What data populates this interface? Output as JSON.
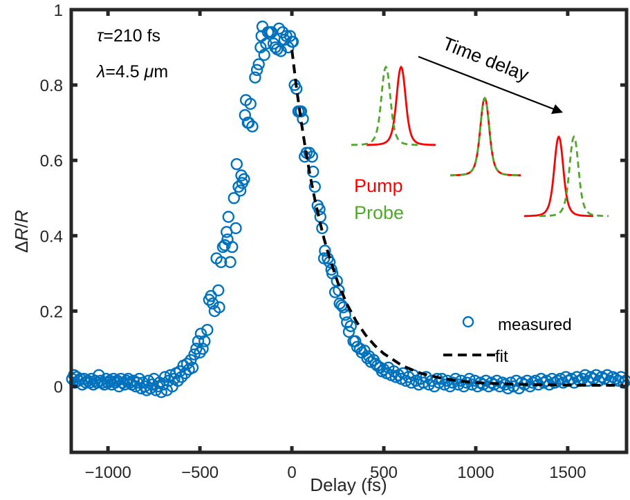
{
  "chart_data": {
    "type": "scatter",
    "title": "",
    "xlabel": "Delay (fs)",
    "ylabel": "ΔR/R",
    "xlim": [
      -1200,
      1820
    ],
    "ylim": [
      -0.175,
      1
    ],
    "xticks": [
      -1000,
      -500,
      0,
      500,
      1000,
      1500
    ],
    "xtick_labels": [
      "−1000",
      "−500",
      "0",
      "500",
      "1000",
      "1500"
    ],
    "yticks": [
      0,
      0.2,
      0.4,
      0.6,
      0.8,
      1
    ],
    "ytick_labels": [
      "0",
      "0.2",
      "0.4",
      "0.6",
      "0.8",
      "1"
    ],
    "grid": false,
    "legend": {
      "placement": "lower-right",
      "entries": [
        {
          "label": "measured",
          "marker": "open-circle",
          "color": "#0072BD"
        },
        {
          "label": "fit",
          "style": "dashed-line",
          "color": "#000000"
        }
      ]
    },
    "annotations": [
      {
        "text_prefix": "τ",
        "text": "=210 fs"
      },
      {
        "text_prefix": "λ",
        "text": "=4.5 ",
        "unit_italic": "μ",
        "unit": "m"
      }
    ],
    "series": [
      {
        "name": "measured",
        "type": "scatter",
        "marker": "open-circle",
        "color": "#0072BD",
        "points": [
          [
            -1195,
            0.02
          ],
          [
            -1185,
            0.03
          ],
          [
            -1180,
            0.01
          ],
          [
            -1170,
            0.025
          ],
          [
            -1160,
            0.015
          ],
          [
            -1150,
            0.02
          ],
          [
            -1140,
            0.005
          ],
          [
            -1130,
            0.02
          ],
          [
            -1120,
            0.01
          ],
          [
            -1110,
            0.015
          ],
          [
            -1100,
            0.01
          ],
          [
            -1090,
            0.02
          ],
          [
            -1080,
            0.005
          ],
          [
            -1070,
            0.015
          ],
          [
            -1060,
            0.01
          ],
          [
            -1050,
            0.03
          ],
          [
            -1040,
            0.015
          ],
          [
            -1030,
            0.01
          ],
          [
            -1020,
            0.005
          ],
          [
            -1010,
            0.02
          ],
          [
            -1000,
            0.01
          ],
          [
            -990,
            0.015
          ],
          [
            -980,
            0.005
          ],
          [
            -970,
            0.02
          ],
          [
            -960,
            0.01
          ],
          [
            -950,
            0.015
          ],
          [
            -940,
            0.0
          ],
          [
            -930,
            0.02
          ],
          [
            -920,
            0.01
          ],
          [
            -910,
            0.005
          ],
          [
            -900,
            0.015
          ],
          [
            -890,
            0.02
          ],
          [
            -880,
            0.01
          ],
          [
            -870,
            0.005
          ],
          [
            -860,
            0.015
          ],
          [
            -850,
            0.0
          ],
          [
            -840,
            0.01
          ],
          [
            -830,
            0.02
          ],
          [
            -820,
            -0.005
          ],
          [
            -810,
            0.01
          ],
          [
            -800,
            0.0
          ],
          [
            -790,
            -0.01
          ],
          [
            -780,
            0.015
          ],
          [
            -770,
            -0.005
          ],
          [
            -760,
            0.005
          ],
          [
            -750,
            0.02
          ],
          [
            -740,
            -0.01
          ],
          [
            -730,
            0.0
          ],
          [
            -720,
            0.01
          ],
          [
            -710,
            -0.015
          ],
          [
            -700,
            0.005
          ],
          [
            -690,
            0.025
          ],
          [
            -680,
            -0.01
          ],
          [
            -670,
            0.015
          ],
          [
            -660,
            0.03
          ],
          [
            -650,
            0.0
          ],
          [
            -640,
            0.02
          ],
          [
            -630,
            0.035
          ],
          [
            -620,
            0.015
          ],
          [
            -610,
            0.04
          ],
          [
            -600,
            0.025
          ],
          [
            -590,
            0.055
          ],
          [
            -580,
            0.035
          ],
          [
            -570,
            0.06
          ],
          [
            -560,
            0.045
          ],
          [
            -550,
            0.07
          ],
          [
            -540,
            0.05
          ],
          [
            -530,
            0.085
          ],
          [
            -520,
            0.1
          ],
          [
            -510,
            0.12
          ],
          [
            -500,
            0.09
          ],
          [
            -495,
            0.14
          ],
          [
            -485,
            0.1
          ],
          [
            -475,
            0.12
          ],
          [
            -460,
            0.15
          ],
          [
            -450,
            0.23
          ],
          [
            -440,
            0.24
          ],
          [
            -430,
            0.22
          ],
          [
            -420,
            0.2
          ],
          [
            -410,
            0.34
          ],
          [
            -400,
            0.255
          ],
          [
            -395,
            0.21
          ],
          [
            -385,
            0.33
          ],
          [
            -375,
            0.37
          ],
          [
            -365,
            0.375
          ],
          [
            -355,
            0.41
          ],
          [
            -350,
            0.39
          ],
          [
            -345,
            0.45
          ],
          [
            -335,
            0.33
          ],
          [
            -325,
            0.37
          ],
          [
            -315,
            0.5
          ],
          [
            -305,
            0.42
          ],
          [
            -300,
            0.59
          ],
          [
            -290,
            0.53
          ],
          [
            -280,
            0.52
          ],
          [
            -275,
            0.56
          ],
          [
            -270,
            0.54
          ],
          [
            -260,
            0.55
          ],
          [
            -255,
            0.72
          ],
          [
            -250,
            0.76
          ],
          [
            -240,
            0.7
          ],
          [
            -235,
            0.7
          ],
          [
            -225,
            0.75
          ],
          [
            -215,
            0.69
          ],
          [
            -200,
            0.82
          ],
          [
            -190,
            0.84
          ],
          [
            -180,
            0.855
          ],
          [
            -170,
            0.9
          ],
          [
            -165,
            0.93
          ],
          [
            -160,
            0.955
          ],
          [
            -150,
            0.88
          ],
          [
            -140,
            0.91
          ],
          [
            -130,
            0.94
          ],
          [
            -120,
            0.94
          ],
          [
            -110,
            0.94
          ],
          [
            -100,
            0.91
          ],
          [
            -90,
            0.9
          ],
          [
            -80,
            0.895
          ],
          [
            -70,
            0.95
          ],
          [
            -60,
            0.89
          ],
          [
            -50,
            0.94
          ],
          [
            -40,
            0.92
          ],
          [
            -30,
            0.93
          ],
          [
            -20,
            0.9
          ],
          [
            -10,
            0.93
          ],
          [
            0,
            0.915
          ],
          [
            5,
            0.915
          ],
          [
            15,
            0.8
          ],
          [
            25,
            0.79
          ],
          [
            35,
            0.73
          ],
          [
            45,
            0.73
          ],
          [
            50,
            0.73
          ],
          [
            60,
            0.71
          ],
          [
            70,
            0.61
          ],
          [
            80,
            0.62
          ],
          [
            95,
            0.62
          ],
          [
            110,
            0.61
          ],
          [
            115,
            0.57
          ],
          [
            125,
            0.53
          ],
          [
            140,
            0.48
          ],
          [
            150,
            0.47
          ],
          [
            155,
            0.45
          ],
          [
            165,
            0.42
          ],
          [
            175,
            0.34
          ],
          [
            180,
            0.36
          ],
          [
            195,
            0.34
          ],
          [
            205,
            0.33
          ],
          [
            215,
            0.31
          ],
          [
            220,
            0.3
          ],
          [
            235,
            0.25
          ],
          [
            245,
            0.28
          ],
          [
            255,
            0.255
          ],
          [
            260,
            0.22
          ],
          [
            270,
            0.215
          ],
          [
            280,
            0.21
          ],
          [
            290,
            0.19
          ],
          [
            300,
            0.17
          ],
          [
            310,
            0.145
          ],
          [
            320,
            0.16
          ],
          [
            335,
            0.12
          ],
          [
            345,
            0.12
          ],
          [
            355,
            0.105
          ],
          [
            370,
            0.1
          ],
          [
            380,
            0.09
          ],
          [
            395,
            0.095
          ],
          [
            410,
            0.075
          ],
          [
            420,
            0.08
          ],
          [
            430,
            0.065
          ],
          [
            445,
            0.07
          ],
          [
            455,
            0.06
          ],
          [
            465,
            0.055
          ],
          [
            480,
            0.05
          ],
          [
            490,
            0.04
          ],
          [
            500,
            0.045
          ],
          [
            515,
            0.035
          ],
          [
            525,
            0.05
          ],
          [
            540,
            0.03
          ],
          [
            555,
            0.04
          ],
          [
            565,
            0.025
          ],
          [
            580,
            0.03
          ],
          [
            595,
            0.02
          ],
          [
            605,
            0.035
          ],
          [
            620,
            0.015
          ],
          [
            635,
            0.025
          ],
          [
            650,
            0.01
          ],
          [
            660,
            0.03
          ],
          [
            675,
            0.015
          ],
          [
            690,
            0.005
          ],
          [
            700,
            0.02
          ],
          [
            715,
            0.01
          ],
          [
            730,
            0.025
          ],
          [
            745,
            0.005
          ],
          [
            760,
            0.015
          ],
          [
            775,
            0.0
          ],
          [
            790,
            0.02
          ],
          [
            800,
            0.01
          ],
          [
            815,
            0.02
          ],
          [
            830,
            0.005
          ],
          [
            845,
            0.015
          ],
          [
            860,
            0.0
          ],
          [
            875,
            0.01
          ],
          [
            890,
            0.02
          ],
          [
            905,
            0.005
          ],
          [
            920,
            0.015
          ],
          [
            935,
            0.0
          ],
          [
            950,
            0.01
          ],
          [
            965,
            0.02
          ],
          [
            980,
            0.005
          ],
          [
            995,
            0.015
          ],
          [
            1010,
            0.0
          ],
          [
            1025,
            0.01
          ],
          [
            1040,
            0.005
          ],
          [
            1055,
            0.015
          ],
          [
            1070,
            0.0
          ],
          [
            1085,
            0.01
          ],
          [
            1100,
            0.005
          ],
          [
            1115,
            0.015
          ],
          [
            1130,
            0.0
          ],
          [
            1145,
            0.01
          ],
          [
            1160,
            0.005
          ],
          [
            1175,
            -0.005
          ],
          [
            1190,
            0.01
          ],
          [
            1205,
            0.0
          ],
          [
            1220,
            0.015
          ],
          [
            1235,
            -0.005
          ],
          [
            1250,
            0.01
          ],
          [
            1265,
            0.005
          ],
          [
            1280,
            0.015
          ],
          [
            1295,
            0.0
          ],
          [
            1310,
            0.01
          ],
          [
            1325,
            0.015
          ],
          [
            1340,
            0.005
          ],
          [
            1355,
            0.02
          ],
          [
            1370,
            0.01
          ],
          [
            1385,
            0.015
          ],
          [
            1400,
            0.005
          ],
          [
            1415,
            0.02
          ],
          [
            1430,
            0.01
          ],
          [
            1445,
            0.015
          ],
          [
            1460,
            0.02
          ],
          [
            1475,
            0.01
          ],
          [
            1490,
            0.025
          ],
          [
            1505,
            0.015
          ],
          [
            1520,
            0.02
          ],
          [
            1535,
            0.01
          ],
          [
            1550,
            0.025
          ],
          [
            1565,
            0.015
          ],
          [
            1580,
            0.02
          ],
          [
            1595,
            0.03
          ],
          [
            1610,
            0.015
          ],
          [
            1625,
            0.025
          ],
          [
            1640,
            0.02
          ],
          [
            1655,
            0.03
          ],
          [
            1670,
            0.015
          ],
          [
            1685,
            0.025
          ],
          [
            1700,
            0.02
          ],
          [
            1715,
            0.03
          ],
          [
            1730,
            0.015
          ],
          [
            1745,
            0.025
          ],
          [
            1760,
            0.02
          ],
          [
            1775,
            0.015
          ],
          [
            1790,
            0.025
          ],
          [
            1805,
            0.01
          ],
          [
            1815,
            0.015
          ]
        ]
      },
      {
        "name": "fit",
        "type": "line",
        "style": "dashed",
        "color": "#000000",
        "x": [
          0,
          25,
          50,
          75,
          100,
          125,
          150,
          175,
          200,
          250,
          300,
          350,
          400,
          450,
          500,
          600,
          700,
          800,
          900,
          1000,
          1200,
          1400,
          1600,
          1800
        ],
        "y": [
          0.893,
          0.793,
          0.705,
          0.627,
          0.557,
          0.496,
          0.441,
          0.392,
          0.349,
          0.276,
          0.218,
          0.173,
          0.137,
          0.109,
          0.087,
          0.055,
          0.035,
          0.023,
          0.015,
          0.01,
          0.006,
          0.004,
          0.003,
          0.003
        ]
      }
    ]
  },
  "inset": {
    "arrow_label": "Time delay",
    "pump_label": "Pump",
    "probe_label": "Probe",
    "pump_color": "#FF0000",
    "probe_color": "#4FA82B",
    "arrow_color": "#000000",
    "pulse_pairs": [
      {
        "name": "probe-before-pump",
        "probe_offset": -1
      },
      {
        "name": "overlap",
        "probe_offset": 0
      },
      {
        "name": "probe-after-pump",
        "probe_offset": 1
      }
    ]
  },
  "colors": {
    "axes": "#262626",
    "marker": "#0072BD",
    "fit": "#000000",
    "background": "#FFFFFF"
  }
}
